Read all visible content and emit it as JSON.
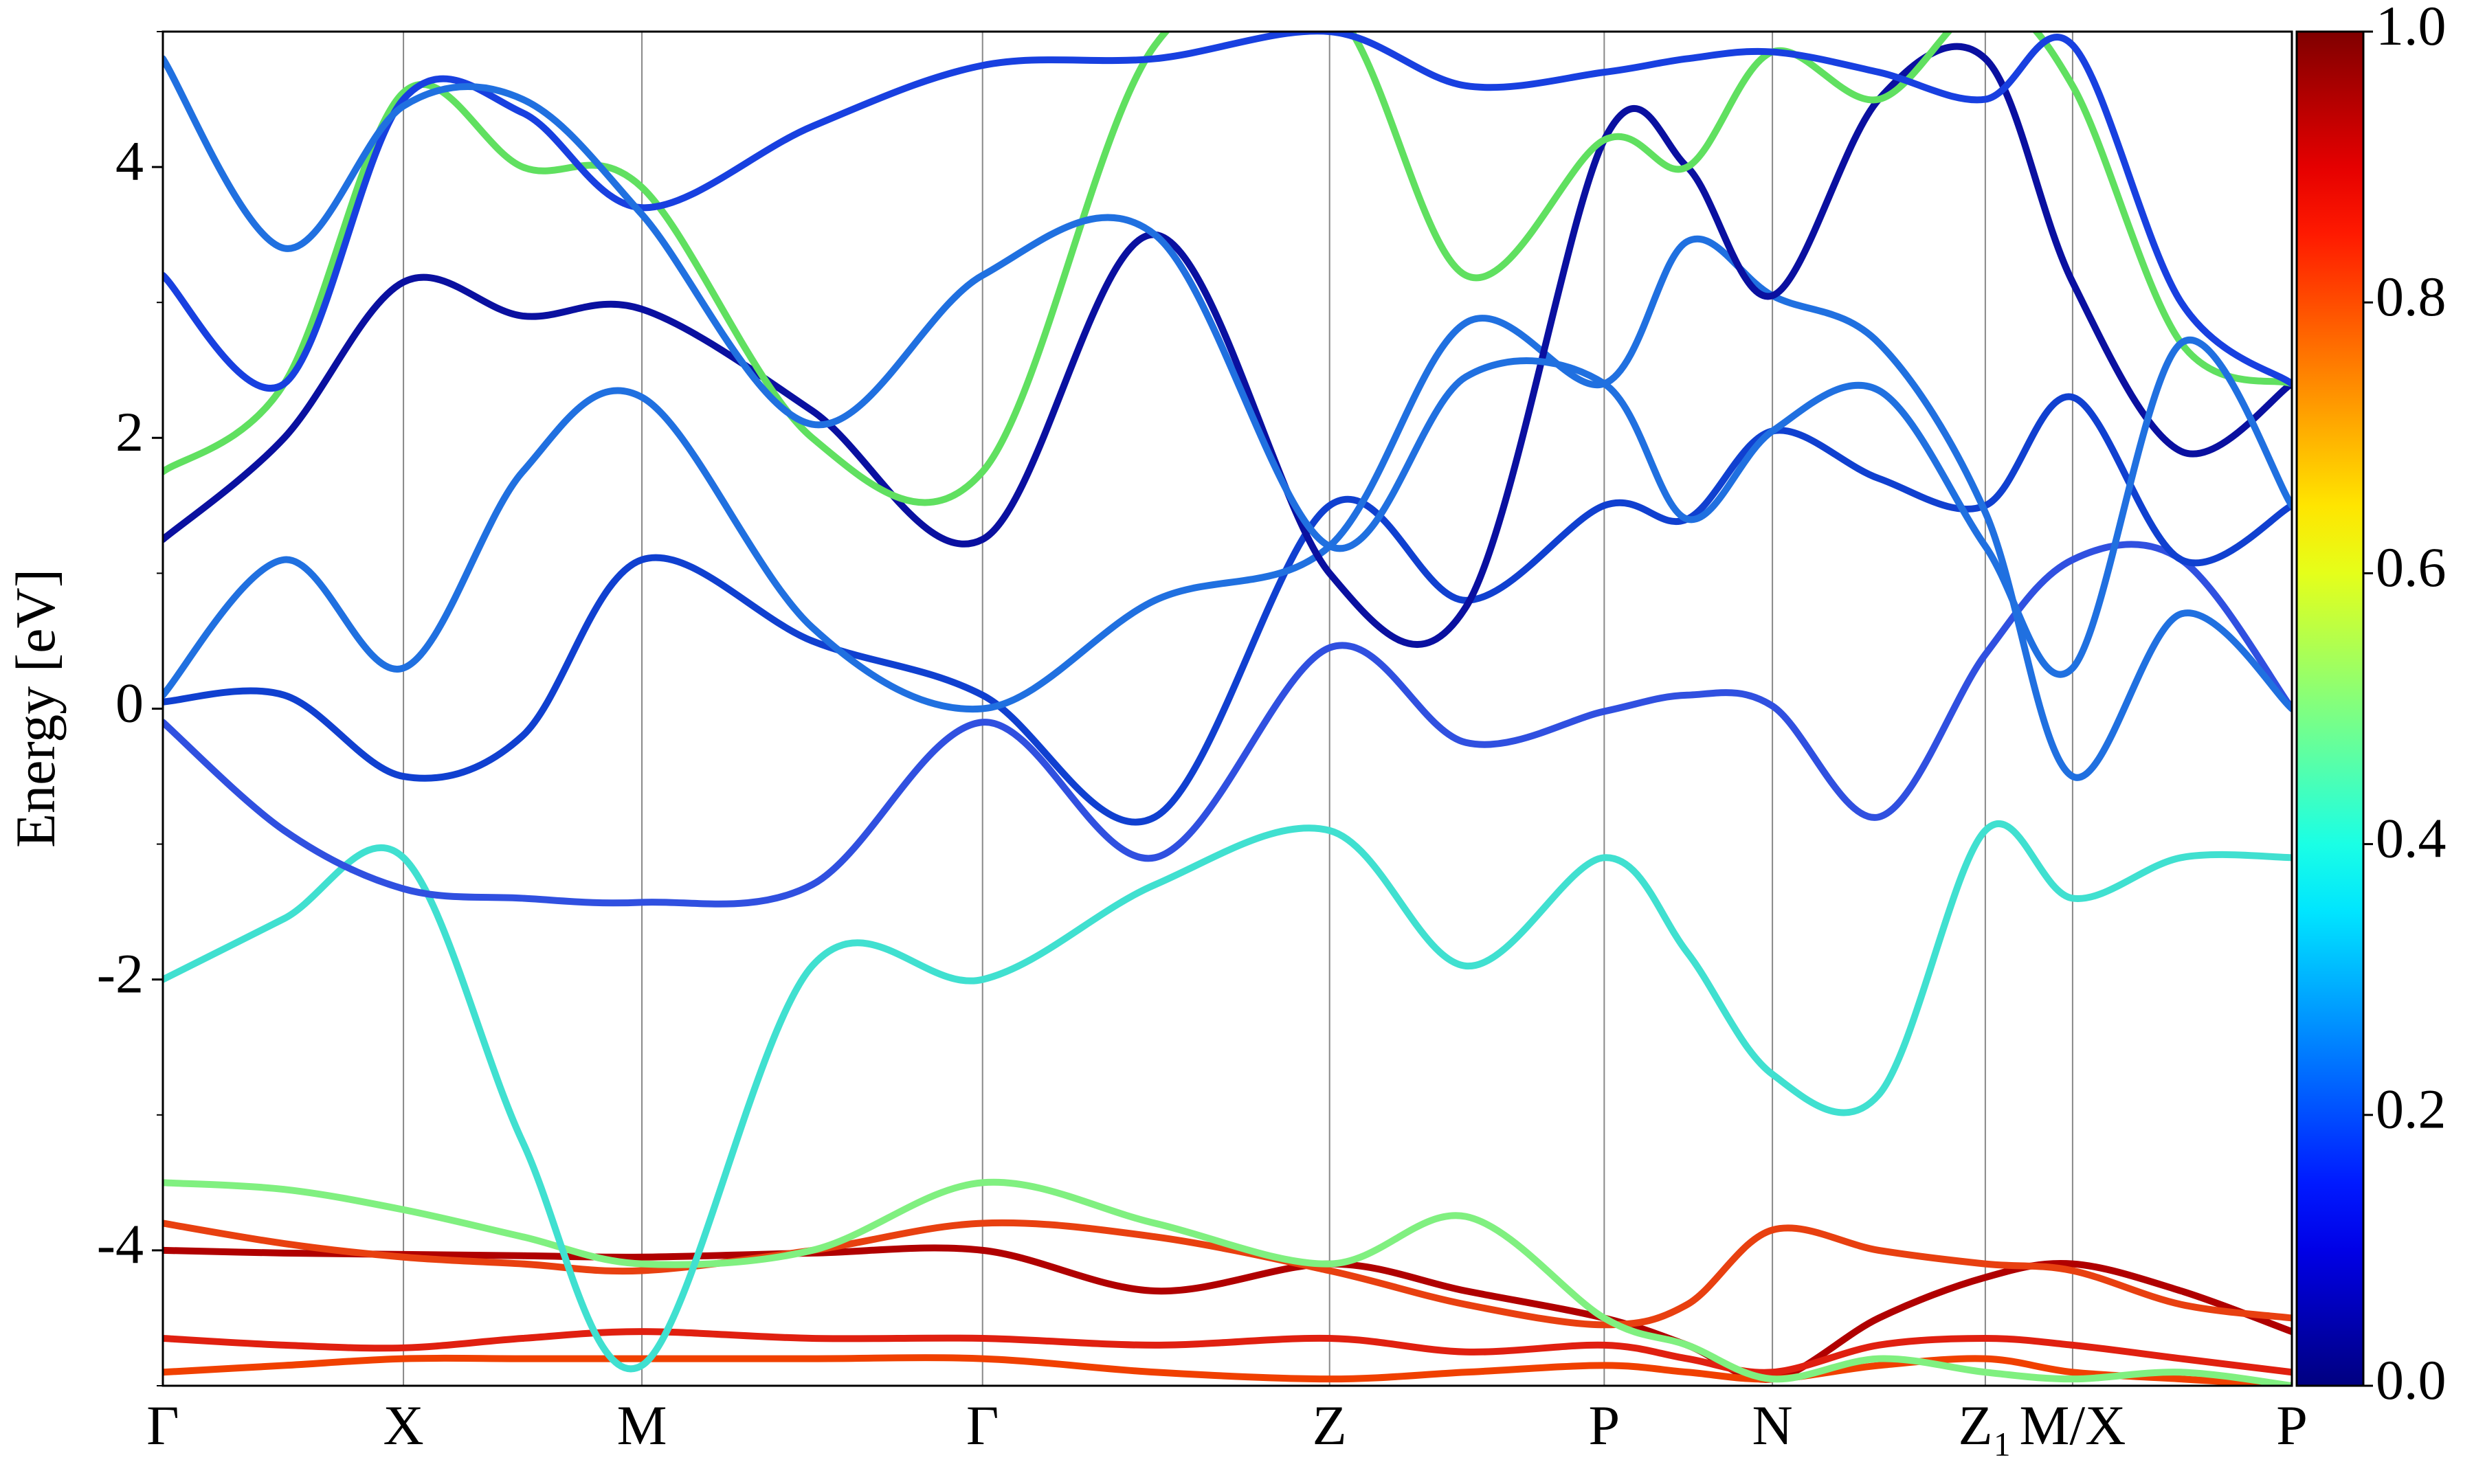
{
  "chart_data": {
    "type": "line",
    "ylabel": "Energy [eV]",
    "x": [
      0,
      0.057,
      0.113,
      0.169,
      0.225,
      0.305,
      0.385,
      0.466,
      0.548,
      0.612,
      0.677,
      0.716,
      0.756,
      0.806,
      0.856,
      0.897,
      0.948,
      1.0
    ],
    "xlim": [
      0,
      1
    ],
    "xticks": [
      {
        "value": 0,
        "label": "Γ"
      },
      {
        "value": 0.113,
        "label": "X"
      },
      {
        "value": 0.225,
        "label": "M"
      },
      {
        "value": 0.385,
        "label": "Γ"
      },
      {
        "value": 0.548,
        "label": "Z"
      },
      {
        "value": 0.677,
        "label": "P"
      },
      {
        "value": 0.756,
        "label": "N"
      },
      {
        "value": 0.856,
        "label": "Z₁"
      },
      {
        "value": 0.897,
        "label": "M/X"
      },
      {
        "value": 1.0,
        "label": "P"
      }
    ],
    "ylim": [
      -5,
      5
    ],
    "yticks": [
      -4,
      -2,
      0,
      2,
      4
    ],
    "yminorticks": [
      -5,
      -3,
      -1,
      1,
      3,
      5
    ],
    "grid": true,
    "colorbar": {
      "colormap": "jet",
      "clim": [
        0,
        1
      ],
      "ticks": [
        {
          "value": 0,
          "label": "0.0"
        },
        {
          "value": 0.2,
          "label": "0.2"
        },
        {
          "value": 0.4,
          "label": "0.4"
        },
        {
          "value": 0.6,
          "label": "0.6"
        },
        {
          "value": 0.8,
          "label": "0.8"
        },
        {
          "value": 1,
          "label": "1.0"
        }
      ]
    },
    "series": [
      {
        "color": "#b00000",
        "values": [
          -4.0,
          -4.02,
          -4.03,
          -4.04,
          -4.05,
          -4.02,
          -4.0,
          -4.3,
          -4.1,
          -4.3,
          -4.5,
          -4.7,
          -4.95,
          -4.5,
          -4.2,
          -4.1,
          -4.3,
          -4.6
        ]
      },
      {
        "color": "#e84010",
        "values": [
          -3.8,
          -3.95,
          -4.05,
          -4.1,
          -4.15,
          -4.0,
          -3.8,
          -3.9,
          -4.15,
          -4.4,
          -4.55,
          -4.4,
          -3.85,
          -4.0,
          -4.1,
          -4.15,
          -4.4,
          -4.5
        ]
      },
      {
        "color": "#e02010",
        "values": [
          -4.65,
          -4.7,
          -4.72,
          -4.65,
          -4.6,
          -4.65,
          -4.65,
          -4.7,
          -4.65,
          -4.75,
          -4.7,
          -4.8,
          -4.9,
          -4.7,
          -4.65,
          -4.7,
          -4.8,
          -4.9
        ]
      },
      {
        "color": "#f04000",
        "values": [
          -4.9,
          -4.85,
          -4.8,
          -4.8,
          -4.8,
          -4.8,
          -4.8,
          -4.9,
          -4.95,
          -4.9,
          -4.85,
          -4.9,
          -4.95,
          -4.85,
          -4.8,
          -4.9,
          -4.95,
          -5.0
        ]
      },
      {
        "color": "#80f080",
        "values": [
          -3.5,
          -3.55,
          -3.7,
          -3.9,
          -4.1,
          -4.0,
          -3.5,
          -3.8,
          -4.1,
          -3.75,
          -4.5,
          -4.7,
          -4.95,
          -4.8,
          -4.9,
          -4.95,
          -4.9,
          -5.0
        ]
      },
      {
        "color": "#40e0d0",
        "values": [
          -2.0,
          -1.55,
          -1.1,
          -3.2,
          -4.85,
          -1.9,
          -2.0,
          -1.3,
          -0.9,
          -1.9,
          -1.1,
          -1.8,
          -2.7,
          -2.85,
          -0.9,
          -1.4,
          -1.1,
          -1.1
        ]
      },
      {
        "color": "#3050e0",
        "values": [
          -0.1,
          -0.9,
          -1.33,
          -1.4,
          -1.43,
          -1.3,
          -0.1,
          -1.1,
          0.45,
          -0.25,
          -0.02,
          0.1,
          0.02,
          -0.8,
          0.4,
          1.1,
          1.1,
          0.0
        ]
      },
      {
        "color": "#1040d0",
        "values": [
          0.05,
          0.1,
          -0.5,
          -0.2,
          1.1,
          0.5,
          0.1,
          -0.8,
          1.5,
          0.8,
          1.5,
          1.4,
          2.05,
          1.7,
          1.5,
          2.3,
          1.1,
          1.5
        ]
      },
      {
        "color": "#2070e0",
        "values": [
          0.1,
          1.1,
          0.3,
          1.75,
          2.3,
          0.6,
          0.0,
          0.8,
          1.2,
          2.85,
          2.4,
          3.45,
          3.05,
          2.7,
          1.45,
          -0.5,
          0.7,
          0.0
        ]
      },
      {
        "color": "#0a10a0",
        "values": [
          1.25,
          2.0,
          3.15,
          2.9,
          2.95,
          2.2,
          1.25,
          3.5,
          1.0,
          0.75,
          4.2,
          4.0,
          3.05,
          4.5,
          4.8,
          3.15,
          1.9,
          2.4
        ]
      },
      {
        "color": "#60e060",
        "values": [
          1.75,
          2.4,
          4.55,
          4.0,
          3.85,
          2.0,
          1.75,
          4.9,
          5.2,
          3.2,
          4.2,
          4.0,
          4.85,
          4.5,
          5.2,
          4.6,
          2.7,
          2.4
        ]
      },
      {
        "color": "#1840e0",
        "values": [
          3.2,
          2.4,
          4.5,
          4.4,
          3.7,
          4.3,
          4.75,
          4.8,
          5.0,
          4.6,
          4.7,
          4.8,
          4.85,
          4.7,
          4.5,
          4.9,
          3.0,
          2.4
        ]
      },
      {
        "color": "#2070e0",
        "values": [
          4.8,
          3.4,
          4.45,
          4.5,
          3.65,
          2.1,
          3.2,
          3.5,
          1.2,
          2.45,
          2.4,
          1.4,
          2.05,
          2.35,
          1.2,
          0.3,
          2.7,
          1.5
        ]
      }
    ]
  }
}
